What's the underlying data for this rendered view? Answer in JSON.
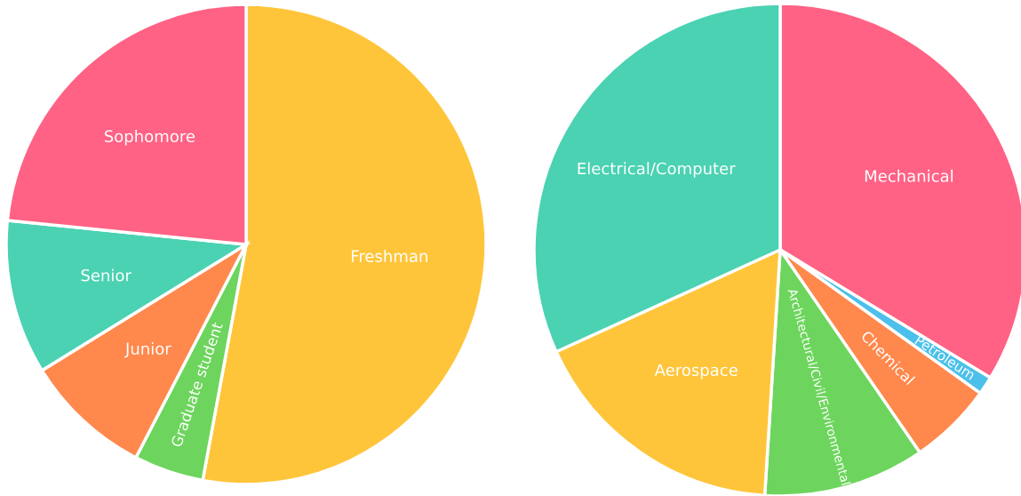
{
  "chart_data": [
    {
      "type": "pie",
      "categories": [
        "Freshman",
        "Graduate student",
        "Junior",
        "Senior",
        "Sophomore"
      ],
      "values": [
        52.9,
        4.7,
        8.6,
        10.4,
        23.4
      ],
      "colors": [
        "#ffc53a",
        "#6dd55d",
        "#ff884d",
        "#4bd2b2",
        "#ff6285"
      ]
    },
    {
      "type": "pie",
      "categories": [
        "Mechanical",
        "Petroleum",
        "Chemical",
        "Architectural/Civil/Environmental",
        "Aerospace",
        "Electrical/Computer"
      ],
      "values": [
        33.7,
        1.2,
        5.5,
        10.6,
        17.2,
        31.8
      ],
      "colors": [
        "#ff6285",
        "#4cc0ea",
        "#ff884d",
        "#6dd55d",
        "#ffc53a",
        "#4bd2b2"
      ]
    }
  ]
}
